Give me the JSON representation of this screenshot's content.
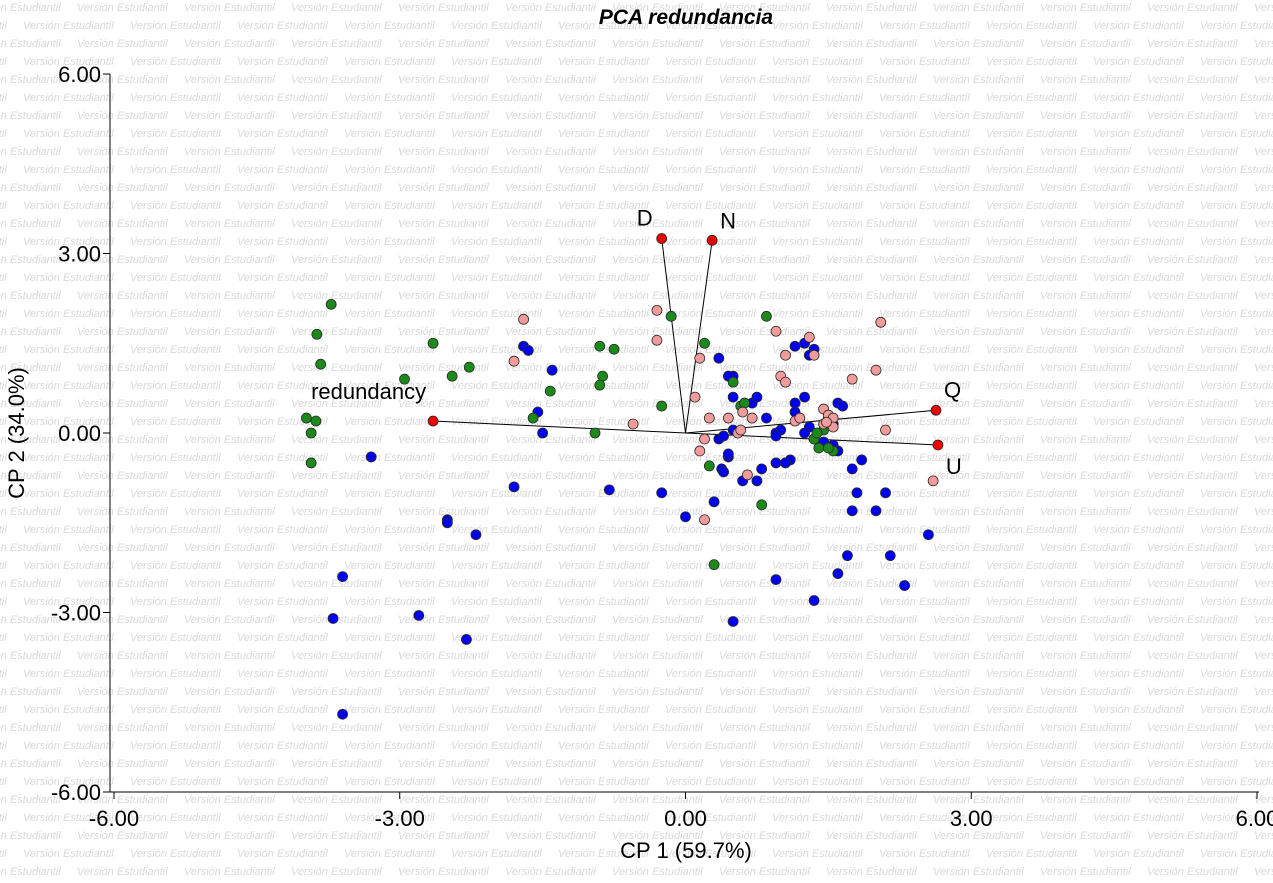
{
  "watermark_text": "Versión Estudiantil",
  "chart_data": {
    "type": "scatter",
    "title": "PCA redundancia",
    "xlabel": "CP 1 (59.7%)",
    "ylabel": "CP 2 (34.0%)",
    "xlim": [
      -6.0,
      6.0
    ],
    "ylim": [
      -6.0,
      6.0
    ],
    "xticks": [
      {
        "value": -6.0,
        "label": "-6.00"
      },
      {
        "value": -3.0,
        "label": "-3.00"
      },
      {
        "value": 0.0,
        "label": "0.00"
      },
      {
        "value": 3.0,
        "label": "3.00"
      },
      {
        "value": 6.0,
        "label": "6.00"
      }
    ],
    "yticks": [
      {
        "value": 6.0,
        "label": "6.00"
      },
      {
        "value": 3.0,
        "label": "3.00"
      },
      {
        "value": 0.0,
        "label": "0.00"
      },
      {
        "value": -3.0,
        "label": "-3.00"
      },
      {
        "value": -6.0,
        "label": "-6.00"
      }
    ],
    "grid": false,
    "colors": {
      "blue": "#0000ee",
      "green": "#1b8a1b",
      "pink": "#f29b9b",
      "red": "#ee0000",
      "vector": "#000000"
    },
    "vectors": [
      {
        "label": "D",
        "x": -0.25,
        "y": 3.25
      },
      {
        "label": "N",
        "x": 0.28,
        "y": 3.22
      },
      {
        "label": "Q",
        "x": 2.63,
        "y": 0.38
      },
      {
        "label": "U",
        "x": 2.65,
        "y": -0.2
      },
      {
        "label": "redundancy",
        "x": -2.65,
        "y": 0.2
      }
    ],
    "series": [
      {
        "color_key": "blue",
        "points": [
          [
            -1.7,
            1.45
          ],
          [
            -1.65,
            1.38
          ],
          [
            -1.4,
            1.05
          ],
          [
            -1.55,
            0.35
          ],
          [
            -1.5,
            0.0
          ],
          [
            -3.3,
            -0.4
          ],
          [
            -2.5,
            -1.45
          ],
          [
            -2.5,
            -1.5
          ],
          [
            -2.2,
            -1.7
          ],
          [
            -1.8,
            -0.9
          ],
          [
            -3.6,
            -2.4
          ],
          [
            -3.7,
            -3.1
          ],
          [
            -2.8,
            -3.05
          ],
          [
            -2.3,
            -3.45
          ],
          [
            -3.6,
            -4.7
          ],
          [
            -0.8,
            -0.95
          ],
          [
            -0.25,
            -1.0
          ],
          [
            0.0,
            -1.4
          ],
          [
            0.3,
            -1.15
          ],
          [
            0.38,
            -0.6
          ],
          [
            0.4,
            -0.65
          ],
          [
            0.6,
            -0.8
          ],
          [
            0.75,
            -0.8
          ],
          [
            0.8,
            -0.6
          ],
          [
            0.45,
            -0.4
          ],
          [
            0.35,
            -0.1
          ],
          [
            0.4,
            -0.05
          ],
          [
            0.45,
            -0.35
          ],
          [
            0.5,
            0.6
          ],
          [
            0.5,
            0.95
          ],
          [
            0.35,
            1.25
          ],
          [
            0.45,
            0.95
          ],
          [
            0.7,
            0.5
          ],
          [
            0.75,
            0.6
          ],
          [
            0.5,
            0.05
          ],
          [
            0.95,
            0.0
          ],
          [
            0.85,
            0.25
          ],
          [
            1.0,
            0.05
          ],
          [
            0.95,
            -0.05
          ],
          [
            1.15,
            1.45
          ],
          [
            1.35,
            1.4
          ],
          [
            1.25,
            1.5
          ],
          [
            1.3,
            1.3
          ],
          [
            1.25,
            0.6
          ],
          [
            1.15,
            0.35
          ],
          [
            1.15,
            0.5
          ],
          [
            1.3,
            0.1
          ],
          [
            1.25,
            0.0
          ],
          [
            1.35,
            -0.1
          ],
          [
            1.45,
            -0.15
          ],
          [
            1.55,
            0.15
          ],
          [
            1.6,
            0.5
          ],
          [
            1.55,
            -0.2
          ],
          [
            1.6,
            -0.3
          ],
          [
            1.75,
            -0.6
          ],
          [
            1.8,
            -1.0
          ],
          [
            1.7,
            -2.05
          ],
          [
            1.6,
            -2.35
          ],
          [
            2.0,
            -1.3
          ],
          [
            2.1,
            -1.0
          ],
          [
            2.15,
            -2.05
          ],
          [
            2.3,
            -2.55
          ],
          [
            2.55,
            -1.7
          ],
          [
            1.65,
            0.45
          ],
          [
            1.1,
            -0.45
          ],
          [
            1.05,
            -0.5
          ],
          [
            0.95,
            -0.5
          ],
          [
            0.95,
            -2.45
          ],
          [
            1.35,
            -2.8
          ],
          [
            0.5,
            -3.15
          ],
          [
            1.75,
            -1.3
          ],
          [
            1.85,
            -0.45
          ]
        ]
      },
      {
        "color_key": "green",
        "points": [
          [
            -3.72,
            2.15
          ],
          [
            -3.87,
            1.65
          ],
          [
            -3.83,
            1.15
          ],
          [
            -3.98,
            0.25
          ],
          [
            -3.88,
            0.2
          ],
          [
            -3.93,
            0.0
          ],
          [
            -3.93,
            -0.5
          ],
          [
            -2.65,
            1.5
          ],
          [
            -2.45,
            0.95
          ],
          [
            -2.27,
            1.1
          ],
          [
            -2.95,
            0.9
          ],
          [
            -1.42,
            0.7
          ],
          [
            -1.6,
            0.25
          ],
          [
            -0.9,
            1.45
          ],
          [
            -0.75,
            1.4
          ],
          [
            -0.87,
            0.95
          ],
          [
            -0.9,
            0.8
          ],
          [
            -0.95,
            0.0
          ],
          [
            -0.15,
            1.95
          ],
          [
            -0.25,
            0.45
          ],
          [
            0.2,
            1.5
          ],
          [
            0.5,
            0.85
          ],
          [
            0.58,
            0.45
          ],
          [
            0.62,
            0.5
          ],
          [
            0.85,
            1.95
          ],
          [
            0.25,
            -0.55
          ],
          [
            0.8,
            -1.2
          ],
          [
            0.3,
            -2.2
          ],
          [
            1.55,
            -0.3
          ],
          [
            1.4,
            -0.25
          ],
          [
            1.35,
            -0.1
          ],
          [
            1.45,
            0.05
          ],
          [
            1.38,
            0.0
          ],
          [
            1.5,
            -0.25
          ]
        ]
      },
      {
        "color_key": "pink",
        "points": [
          [
            -1.7,
            1.9
          ],
          [
            -1.8,
            1.2
          ],
          [
            -0.55,
            0.15
          ],
          [
            -0.3,
            2.05
          ],
          [
            -0.3,
            1.55
          ],
          [
            0.15,
            1.25
          ],
          [
            0.1,
            0.6
          ],
          [
            0.25,
            0.25
          ],
          [
            0.2,
            -0.1
          ],
          [
            0.15,
            -0.3
          ],
          [
            0.2,
            -1.45
          ],
          [
            0.45,
            0.25
          ],
          [
            0.55,
            0.0
          ],
          [
            0.6,
            0.35
          ],
          [
            0.7,
            0.25
          ],
          [
            0.65,
            -0.7
          ],
          [
            0.95,
            1.7
          ],
          [
            1.05,
            1.3
          ],
          [
            1.0,
            0.95
          ],
          [
            1.05,
            0.85
          ],
          [
            1.15,
            0.2
          ],
          [
            1.2,
            0.25
          ],
          [
            1.3,
            1.6
          ],
          [
            1.35,
            1.3
          ],
          [
            1.45,
            0.15
          ],
          [
            1.5,
            0.25
          ],
          [
            1.45,
            0.4
          ],
          [
            1.5,
            0.3
          ],
          [
            1.55,
            0.25
          ],
          [
            1.55,
            0.1
          ],
          [
            1.75,
            0.9
          ],
          [
            2.0,
            1.05
          ],
          [
            2.05,
            1.85
          ],
          [
            2.1,
            0.05
          ],
          [
            2.6,
            -0.8
          ],
          [
            1.48,
            0.18
          ],
          [
            0.58,
            0.05
          ]
        ]
      }
    ]
  }
}
